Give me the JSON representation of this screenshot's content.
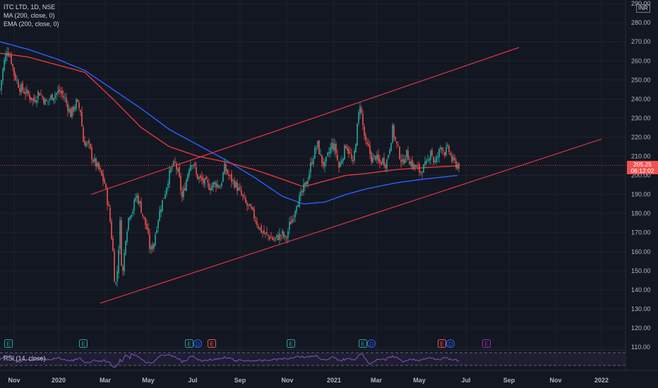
{
  "legend": {
    "symbol": "ITC LTD, 1D, NSE",
    "ma": "MA (200, close, 0)",
    "ema": "EMA (200, close, 0)"
  },
  "rsi": {
    "label": "RSI (14, close)"
  },
  "currency": "INR",
  "price_tag": {
    "price": "205.25",
    "countdown": "06:12:02"
  },
  "colors": {
    "background": "#131722",
    "up": "#26a69a",
    "down": "#ef5350",
    "ma": "#2962ff",
    "ema": "#e53935",
    "trendline": "#f23645",
    "rsi": "#7e57c2",
    "event_earnings": "#26a69a",
    "event_dividend": "#2962ff",
    "event_split": "#ef5350",
    "event_future": "#9c27b0"
  },
  "chart_data": {
    "type": "candlestick",
    "y_axis": {
      "ticks": [
        110,
        120,
        130,
        140,
        150,
        160,
        170,
        180,
        190,
        200,
        210,
        220,
        230,
        240,
        250,
        260,
        270,
        280,
        290
      ]
    },
    "y_tick_labels": [
      "110.00",
      "120.00",
      "130.00",
      "140.00",
      "150.00",
      "160.00",
      "170.00",
      "180.00",
      "190.00",
      "200.00",
      "210.00",
      "220.00",
      "230.00",
      "240.00",
      "250.00",
      "260.00",
      "270.00",
      "280.00",
      "290.00"
    ],
    "x_tick_labels": [
      "Nov",
      "2020",
      "Mar",
      "May",
      "Jul",
      "Sep",
      "Nov",
      "2021",
      "Mar",
      "May",
      "Jul",
      "Sep",
      "Nov",
      "2022"
    ],
    "close_anchors": [
      {
        "t": 0,
        "v": 245
      },
      {
        "t": 5,
        "v": 258
      },
      {
        "t": 10,
        "v": 266
      },
      {
        "t": 15,
        "v": 262
      },
      {
        "t": 20,
        "v": 253
      },
      {
        "t": 28,
        "v": 246
      },
      {
        "t": 38,
        "v": 243
      },
      {
        "t": 48,
        "v": 239
      },
      {
        "t": 55,
        "v": 244
      },
      {
        "t": 65,
        "v": 238
      },
      {
        "t": 75,
        "v": 242
      },
      {
        "t": 85,
        "v": 244
      },
      {
        "t": 92,
        "v": 240
      },
      {
        "t": 100,
        "v": 232
      },
      {
        "t": 108,
        "v": 238
      },
      {
        "t": 114,
        "v": 234
      },
      {
        "t": 118,
        "v": 218
      },
      {
        "t": 125,
        "v": 216
      },
      {
        "t": 132,
        "v": 208
      },
      {
        "t": 140,
        "v": 203
      },
      {
        "t": 148,
        "v": 196
      },
      {
        "t": 155,
        "v": 180
      },
      {
        "t": 160,
        "v": 160
      },
      {
        "t": 163,
        "v": 140
      },
      {
        "t": 166,
        "v": 150
      },
      {
        "t": 170,
        "v": 175
      },
      {
        "t": 173,
        "v": 145
      },
      {
        "t": 178,
        "v": 168
      },
      {
        "t": 183,
        "v": 180
      },
      {
        "t": 188,
        "v": 182
      },
      {
        "t": 193,
        "v": 190
      },
      {
        "t": 198,
        "v": 185
      },
      {
        "t": 203,
        "v": 178
      },
      {
        "t": 208,
        "v": 172
      },
      {
        "t": 213,
        "v": 160
      },
      {
        "t": 218,
        "v": 165
      },
      {
        "t": 223,
        "v": 176
      },
      {
        "t": 228,
        "v": 184
      },
      {
        "t": 233,
        "v": 190
      },
      {
        "t": 238,
        "v": 198
      },
      {
        "t": 243,
        "v": 204
      },
      {
        "t": 248,
        "v": 206
      },
      {
        "t": 253,
        "v": 200
      },
      {
        "t": 258,
        "v": 188
      },
      {
        "t": 263,
        "v": 196
      },
      {
        "t": 268,
        "v": 205
      },
      {
        "t": 273,
        "v": 208
      },
      {
        "t": 278,
        "v": 200
      },
      {
        "t": 283,
        "v": 198
      },
      {
        "t": 290,
        "v": 196
      },
      {
        "t": 298,
        "v": 194
      },
      {
        "t": 305,
        "v": 196
      },
      {
        "t": 312,
        "v": 194
      },
      {
        "t": 318,
        "v": 204
      },
      {
        "t": 325,
        "v": 199
      },
      {
        "t": 332,
        "v": 196
      },
      {
        "t": 340,
        "v": 191
      },
      {
        "t": 348,
        "v": 185
      },
      {
        "t": 355,
        "v": 182
      },
      {
        "t": 362,
        "v": 177
      },
      {
        "t": 368,
        "v": 172
      },
      {
        "t": 375,
        "v": 169
      },
      {
        "t": 382,
        "v": 168
      },
      {
        "t": 388,
        "v": 166
      },
      {
        "t": 394,
        "v": 168
      },
      {
        "t": 400,
        "v": 169
      },
      {
        "t": 405,
        "v": 166
      },
      {
        "t": 410,
        "v": 174
      },
      {
        "t": 415,
        "v": 178
      },
      {
        "t": 420,
        "v": 186
      },
      {
        "t": 425,
        "v": 188
      },
      {
        "t": 430,
        "v": 193
      },
      {
        "t": 435,
        "v": 197
      },
      {
        "t": 440,
        "v": 205
      },
      {
        "t": 445,
        "v": 212
      },
      {
        "t": 450,
        "v": 216
      },
      {
        "t": 455,
        "v": 208
      },
      {
        "t": 460,
        "v": 205
      },
      {
        "t": 465,
        "v": 211
      },
      {
        "t": 470,
        "v": 216
      },
      {
        "t": 475,
        "v": 214
      },
      {
        "t": 480,
        "v": 204
      },
      {
        "t": 485,
        "v": 210
      },
      {
        "t": 490,
        "v": 216
      },
      {
        "t": 495,
        "v": 212
      },
      {
        "t": 500,
        "v": 205
      },
      {
        "t": 505,
        "v": 222
      },
      {
        "t": 510,
        "v": 238
      },
      {
        "t": 514,
        "v": 226
      },
      {
        "t": 518,
        "v": 216
      },
      {
        "t": 522,
        "v": 214
      },
      {
        "t": 527,
        "v": 208
      },
      {
        "t": 532,
        "v": 210
      },
      {
        "t": 537,
        "v": 206
      },
      {
        "t": 542,
        "v": 208
      },
      {
        "t": 547,
        "v": 206
      },
      {
        "t": 552,
        "v": 215
      },
      {
        "t": 556,
        "v": 224
      },
      {
        "t": 560,
        "v": 218
      },
      {
        "t": 565,
        "v": 212
      },
      {
        "t": 570,
        "v": 206
      },
      {
        "t": 575,
        "v": 212
      },
      {
        "t": 580,
        "v": 208
      },
      {
        "t": 585,
        "v": 205
      },
      {
        "t": 590,
        "v": 204
      },
      {
        "t": 595,
        "v": 202
      },
      {
        "t": 600,
        "v": 204
      },
      {
        "t": 605,
        "v": 206
      },
      {
        "t": 610,
        "v": 214
      },
      {
        "t": 615,
        "v": 206
      },
      {
        "t": 620,
        "v": 210
      },
      {
        "t": 625,
        "v": 216
      },
      {
        "t": 630,
        "v": 212
      },
      {
        "t": 635,
        "v": 214
      },
      {
        "t": 640,
        "v": 208
      },
      {
        "t": 645,
        "v": 206
      },
      {
        "t": 650,
        "v": 205.25
      }
    ],
    "ma_200": [
      {
        "t": 0,
        "v": 270
      },
      {
        "t": 40,
        "v": 266
      },
      {
        "t": 80,
        "v": 261
      },
      {
        "t": 120,
        "v": 255
      },
      {
        "t": 160,
        "v": 245
      },
      {
        "t": 200,
        "v": 235
      },
      {
        "t": 240,
        "v": 224
      },
      {
        "t": 280,
        "v": 216
      },
      {
        "t": 320,
        "v": 208
      },
      {
        "t": 360,
        "v": 199
      },
      {
        "t": 400,
        "v": 189
      },
      {
        "t": 430,
        "v": 185
      },
      {
        "t": 460,
        "v": 186
      },
      {
        "t": 490,
        "v": 190
      },
      {
        "t": 520,
        "v": 193
      },
      {
        "t": 560,
        "v": 196
      },
      {
        "t": 600,
        "v": 198
      },
      {
        "t": 650,
        "v": 200
      }
    ],
    "ema_200": [
      {
        "t": 0,
        "v": 264
      },
      {
        "t": 40,
        "v": 262
      },
      {
        "t": 80,
        "v": 258
      },
      {
        "t": 120,
        "v": 254
      },
      {
        "t": 160,
        "v": 240
      },
      {
        "t": 200,
        "v": 225
      },
      {
        "t": 240,
        "v": 215
      },
      {
        "t": 280,
        "v": 210
      },
      {
        "t": 320,
        "v": 207
      },
      {
        "t": 360,
        "v": 203
      },
      {
        "t": 400,
        "v": 198
      },
      {
        "t": 430,
        "v": 194
      },
      {
        "t": 460,
        "v": 197
      },
      {
        "t": 490,
        "v": 200
      },
      {
        "t": 520,
        "v": 201
      },
      {
        "t": 560,
        "v": 203
      },
      {
        "t": 600,
        "v": 204
      },
      {
        "t": 650,
        "v": 205
      }
    ],
    "trendlines": [
      {
        "x1": 142,
        "y1": 133,
        "x2": 852,
        "y2": 219
      },
      {
        "x1": 129,
        "y1": 190,
        "x2": 735,
        "y2": 267
      }
    ],
    "last_price": 205.25,
    "events": [
      {
        "t": 12,
        "type": "E"
      },
      {
        "t": 118,
        "type": "E"
      },
      {
        "t": 268,
        "type": "E"
      },
      {
        "t": 280,
        "type": "D"
      },
      {
        "t": 300,
        "type": "E"
      },
      {
        "t": 412,
        "type": "E"
      },
      {
        "t": 514,
        "type": "E"
      },
      {
        "t": 526,
        "type": "D"
      },
      {
        "t": 626,
        "type": "E"
      },
      {
        "t": 638,
        "type": "D"
      },
      {
        "t": 689,
        "type": "E"
      }
    ]
  }
}
